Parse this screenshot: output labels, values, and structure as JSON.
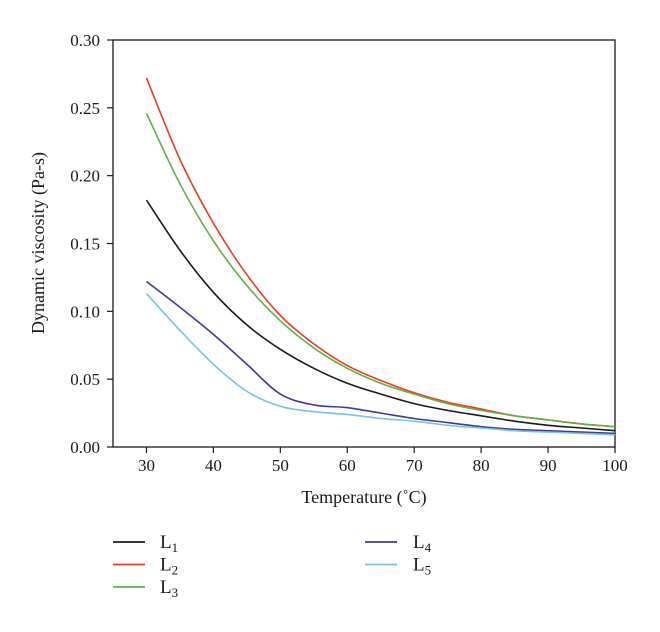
{
  "chart_data": {
    "type": "line",
    "xlabel": "Temperature (˚C)",
    "ylabel": "Dynamic viscosity (Pa-s)",
    "xlim": [
      25,
      100
    ],
    "ylim": [
      0,
      0.3
    ],
    "xticks": [
      30,
      40,
      50,
      60,
      70,
      80,
      90,
      100
    ],
    "xtick_labels": [
      "30",
      "40",
      "50",
      "60",
      "70",
      "80",
      "90",
      "100"
    ],
    "yticks": [
      0,
      0.05,
      0.1,
      0.15,
      0.2,
      0.25,
      0.3
    ],
    "ytick_labels": [
      "0.00",
      "0.05",
      "0.10",
      "0.15",
      "0.20",
      "0.25",
      "0.30"
    ],
    "grid": false,
    "legend_position": "bottom",
    "x": [
      30,
      35,
      40,
      45,
      50,
      55,
      60,
      65,
      70,
      75,
      80,
      85,
      90,
      95,
      100
    ],
    "series": [
      {
        "name": "L",
        "subscript": "1",
        "color": "#1a1a1a",
        "values": [
          0.182,
          0.145,
          0.114,
          0.09,
          0.072,
          0.058,
          0.047,
          0.039,
          0.032,
          0.027,
          0.023,
          0.019,
          0.016,
          0.014,
          0.012
        ]
      },
      {
        "name": "L",
        "subscript": "2",
        "color": "#ee3b24",
        "values": [
          0.272,
          0.212,
          0.165,
          0.127,
          0.097,
          0.076,
          0.06,
          0.049,
          0.04,
          0.033,
          0.028,
          0.023,
          0.02,
          0.017,
          0.015
        ]
      },
      {
        "name": "L",
        "subscript": "3",
        "color": "#62b045",
        "values": [
          0.246,
          0.194,
          0.152,
          0.119,
          0.093,
          0.073,
          0.058,
          0.047,
          0.039,
          0.032,
          0.027,
          0.023,
          0.02,
          0.017,
          0.015
        ]
      },
      {
        "name": "L",
        "subscript": "4",
        "color": "#3f3a96",
        "values": [
          0.122,
          0.103,
          0.083,
          0.061,
          0.039,
          0.031,
          0.029,
          0.025,
          0.021,
          0.018,
          0.015,
          0.013,
          0.012,
          0.011,
          0.01
        ]
      },
      {
        "name": "L",
        "subscript": "5",
        "color": "#79c2e6",
        "values": [
          0.113,
          0.086,
          0.061,
          0.041,
          0.03,
          0.026,
          0.024,
          0.021,
          0.019,
          0.016,
          0.014,
          0.012,
          0.011,
          0.01,
          0.009
        ]
      }
    ]
  }
}
